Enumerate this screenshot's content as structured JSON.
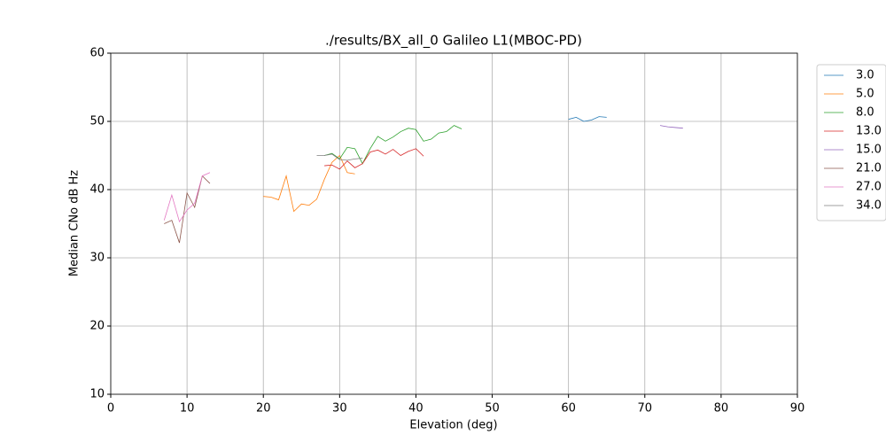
{
  "chart_data": {
    "type": "line",
    "title": "./results/BX_all_0 Galileo L1(MBOC-PD)",
    "x_label": "Elevation (deg)",
    "y_label": "Median CNo dB Hz",
    "xlim": [
      0,
      90
    ],
    "ylim": [
      10,
      60
    ],
    "xticks": [
      0,
      10,
      20,
      30,
      40,
      50,
      60,
      70,
      80,
      90
    ],
    "yticks": [
      10,
      20,
      30,
      40,
      50,
      60
    ],
    "grid": true,
    "legend": "outside-right",
    "series": [
      {
        "name": "3.0",
        "color": "#1f77b4",
        "x": [
          60,
          61,
          62,
          63,
          64,
          65
        ],
        "values": [
          50.3,
          50.6,
          50.0,
          50.2,
          50.7,
          50.6
        ]
      },
      {
        "name": "5.0",
        "color": "#ff7f0e",
        "x": [
          20,
          21,
          22,
          23,
          24,
          25,
          26,
          27,
          28,
          29,
          30,
          31,
          32
        ],
        "values": [
          39.0,
          38.9,
          38.5,
          42.0,
          36.8,
          37.9,
          37.7,
          38.6,
          41.5,
          44.0,
          45.0,
          42.5,
          42.3
        ]
      },
      {
        "name": "8.0",
        "color": "#2ca02c",
        "x": [
          28,
          29,
          30,
          31,
          32,
          33,
          34,
          35,
          36,
          37,
          38,
          39,
          40,
          41,
          42,
          43,
          44,
          45,
          46
        ],
        "values": [
          45.0,
          45.3,
          44.5,
          46.2,
          46.0,
          43.8,
          46.0,
          47.8,
          47.1,
          47.7,
          48.5,
          49.0,
          48.8,
          47.1,
          47.4,
          48.3,
          48.5,
          49.4,
          48.9
        ]
      },
      {
        "name": "13.0",
        "color": "#d62728",
        "x": [
          28,
          29,
          30,
          31,
          32,
          33,
          34,
          35,
          36,
          37,
          38,
          39,
          40,
          41
        ],
        "values": [
          43.5,
          43.6,
          43.0,
          44.2,
          43.2,
          43.8,
          45.5,
          45.8,
          45.2,
          45.9,
          45.0,
          45.6,
          46.0,
          44.9
        ]
      },
      {
        "name": "15.0",
        "color": "#9467bd",
        "x": [
          72,
          73,
          74,
          75
        ],
        "values": [
          49.4,
          49.2,
          49.1,
          49.0
        ]
      },
      {
        "name": "21.0",
        "color": "#8c564b",
        "x": [
          7,
          8,
          9,
          10,
          11,
          12,
          13
        ],
        "values": [
          35.0,
          35.5,
          32.2,
          39.5,
          37.4,
          42.0,
          40.9
        ]
      },
      {
        "name": "27.0",
        "color": "#e377c2",
        "x": [
          7,
          8,
          9,
          10,
          11,
          12,
          13
        ],
        "values": [
          35.5,
          39.2,
          35.3,
          37.0,
          38.0,
          42.0,
          42.5
        ]
      },
      {
        "name": "34.0",
        "color": "#7f7f7f",
        "x": [
          27,
          28,
          29,
          30,
          31,
          32,
          33
        ],
        "values": [
          45.0,
          45.0,
          45.2,
          44.4,
          44.3,
          44.5,
          44.6
        ]
      }
    ]
  }
}
